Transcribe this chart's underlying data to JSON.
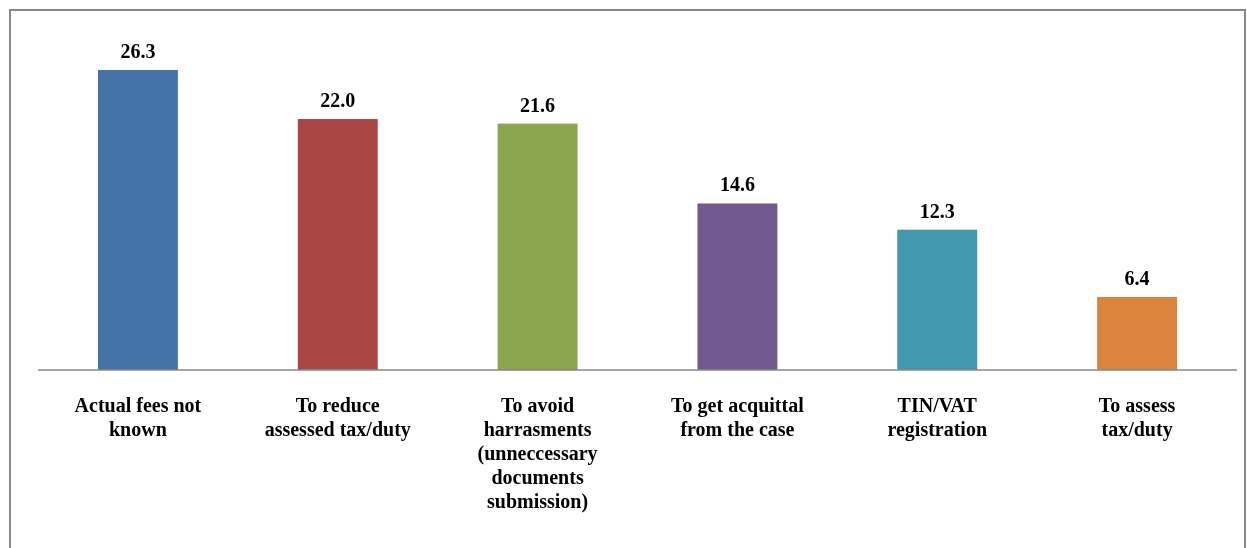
{
  "chart_data": {
    "type": "bar",
    "categories": [
      "Actual fees not known",
      "To reduce assessed tax/duty",
      "To avoid harrasments (unneccessary documents submission)",
      "To get acquittal from the case",
      "TIN/VAT registration",
      "To assess tax/duty"
    ],
    "values": [
      26.3,
      22.0,
      21.6,
      14.6,
      12.3,
      6.4
    ],
    "colors": [
      "#4572a7",
      "#aa4643",
      "#89a54e",
      "#71588f",
      "#4198af",
      "#db843d"
    ],
    "value_labels": [
      "26.3",
      "22.0",
      "21.6",
      "14.6",
      "12.3",
      "6.4"
    ]
  }
}
